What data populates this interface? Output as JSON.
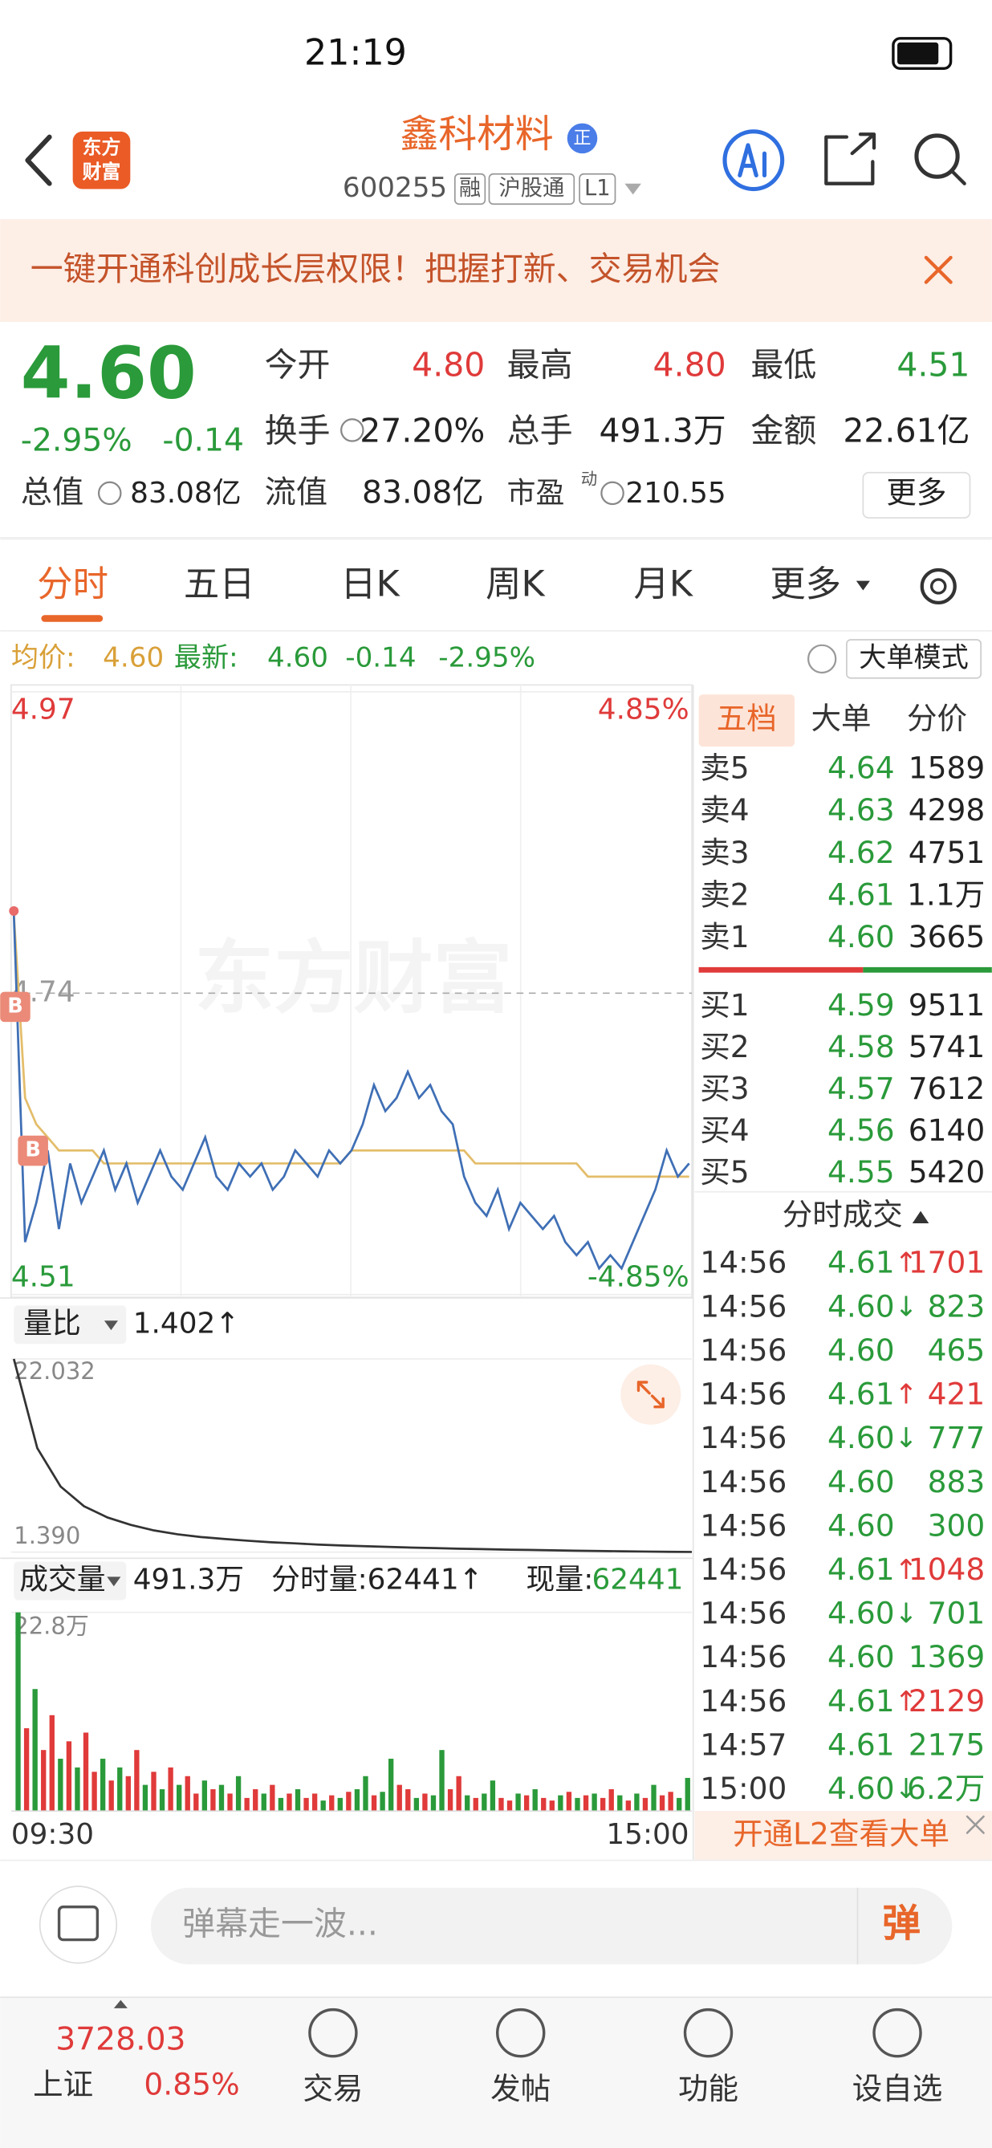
{
  "status_bar": {
    "time": "21:19"
  },
  "header": {
    "logo": [
      "东方",
      "财富"
    ],
    "title": "鑫科材料",
    "badge": "正",
    "code": "600255",
    "tags": [
      "融",
      "沪股通",
      "L1"
    ]
  },
  "banner": {
    "text": "一键开通科创成长层权限！把握打新、交易机会"
  },
  "quote": {
    "price": "4.60",
    "change_pct": "-2.95%",
    "change": "-0.14",
    "fields": [
      {
        "label": "今开",
        "value": "4.80"
      },
      {
        "label": "最高",
        "value": "4.80"
      },
      {
        "label": "最低",
        "value": "4.51"
      },
      {
        "label": "换手",
        "value": "27.20%"
      },
      {
        "label": "总手",
        "value": "491.3万"
      },
      {
        "label": "金额",
        "value": "22.61亿"
      },
      {
        "label": "总值",
        "value": "83.08亿"
      },
      {
        "label": "流值",
        "value": "83.08亿"
      },
      {
        "label": "市盈",
        "value": "210.55",
        "sup": "动"
      }
    ],
    "more": "更多"
  },
  "tabs": [
    "分时",
    "五日",
    "日K",
    "周K",
    "月K",
    "更多"
  ],
  "info": {
    "avg_label": "均价:",
    "avg": "4.60",
    "latest_label": "最新:",
    "latest": "4.60",
    "change": "-0.14",
    "change_pct": "-2.95%",
    "mode": "大单模式"
  },
  "intraday": {
    "watermark": "东方财富",
    "marker": "B",
    "ylim": [
      4.51,
      4.97
    ],
    "yticks": [
      {
        "value": 4.97,
        "label": "4.97"
      },
      {
        "value": 4.74,
        "label": "4.74"
      },
      {
        "value": 4.51,
        "label": "4.51"
      }
    ],
    "pct_ylim": [
      -4.85,
      4.85
    ],
    "pct_ticks": [
      {
        "value": 4.85,
        "label": "4.85%"
      },
      {
        "value": -4.85,
        "label": "-4.85%"
      }
    ],
    "price": [
      4.8,
      4.55,
      4.58,
      4.62,
      4.56,
      4.61,
      4.58,
      4.6,
      4.62,
      4.59,
      4.61,
      4.58,
      4.6,
      4.62,
      4.6,
      4.59,
      4.61,
      4.63,
      4.6,
      4.59,
      4.61,
      4.6,
      4.61,
      4.59,
      4.6,
      4.62,
      4.61,
      4.6,
      4.62,
      4.61,
      4.62,
      4.64,
      4.67,
      4.65,
      4.66,
      4.68,
      4.66,
      4.67,
      4.65,
      4.64,
      4.6,
      4.58,
      4.57,
      4.59,
      4.56,
      4.58,
      4.57,
      4.56,
      4.57,
      4.55,
      4.54,
      4.55,
      4.53,
      4.54,
      4.53,
      4.55,
      4.57,
      4.59,
      4.62,
      4.6,
      4.61
    ],
    "avg": [
      4.8,
      4.66,
      4.64,
      4.63,
      4.62,
      4.62,
      4.62,
      4.62,
      4.61,
      4.61,
      4.61,
      4.61,
      4.61,
      4.61,
      4.61,
      4.61,
      4.61,
      4.61,
      4.61,
      4.61,
      4.61,
      4.61,
      4.61,
      4.61,
      4.61,
      4.61,
      4.61,
      4.61,
      4.61,
      4.61,
      4.62,
      4.62,
      4.62,
      4.62,
      4.62,
      4.62,
      4.62,
      4.62,
      4.62,
      4.62,
      4.62,
      4.61,
      4.61,
      4.61,
      4.61,
      4.61,
      4.61,
      4.61,
      4.61,
      4.61,
      4.61,
      4.6,
      4.6,
      4.6,
      4.6,
      4.6,
      4.6,
      4.6,
      4.6,
      4.6,
      4.6
    ]
  },
  "volume_ratio": {
    "label": "量比",
    "value": "1.402↑",
    "ylim": [
      1.39,
      22.032
    ],
    "yticks": [
      {
        "value": 22.032,
        "label": "22.032"
      },
      {
        "value": 1.39,
        "label": "1.390"
      }
    ],
    "values": [
      22.03,
      12.5,
      8.4,
      6.3,
      5.1,
      4.3,
      3.7,
      3.3,
      3.0,
      2.8,
      2.6,
      2.45,
      2.32,
      2.2,
      2.1,
      2.02,
      1.95,
      1.88,
      1.82,
      1.76,
      1.71,
      1.66,
      1.62,
      1.58,
      1.54,
      1.51,
      1.48,
      1.45,
      1.42,
      1.4
    ]
  },
  "volume": {
    "label": "成交量",
    "total": "491.3万",
    "tick_label": "分时量:62441↑",
    "current_label": "现量:",
    "current": "62441",
    "ylim": [
      0,
      22.8
    ],
    "yticks": [
      {
        "value": 22.8,
        "label": "22.8万"
      }
    ],
    "values": [
      22.8,
      9.5,
      14,
      7,
      11,
      6,
      8,
      5,
      9,
      4.5,
      6,
      3.5,
      5,
      4,
      7,
      3,
      4.5,
      2.5,
      5,
      3,
      4,
      2,
      3.5,
      2.5,
      3,
      2,
      4,
      1.5,
      2.5,
      2,
      3,
      1.5,
      2,
      2.5,
      1.5,
      2,
      1.2,
      1.8,
      1.5,
      2.2,
      2.5,
      4,
      1.8,
      2.2,
      6,
      3,
      2.5,
      1.5,
      2,
      1.8,
      7,
      2.5,
      4,
      1.8,
      1.5,
      2,
      3.5,
      1.5,
      1.2,
      2,
      1.8,
      2.5,
      1.5,
      1.2,
      1.8,
      2.2,
      1.5,
      1.8,
      2,
      1.5,
      2.5,
      1.8,
      1.2,
      2,
      1.5,
      3,
      1.8,
      2.2,
      1.5,
      3.8
    ],
    "up": [
      0,
      1,
      0,
      1,
      1,
      0,
      1,
      0,
      1,
      1,
      0,
      1,
      0,
      1,
      1,
      0,
      1,
      0,
      1,
      0,
      1,
      1,
      0,
      1,
      0,
      1,
      0,
      1,
      1,
      0,
      1,
      0,
      1,
      0,
      1,
      1,
      0,
      1,
      0,
      1,
      0,
      0,
      1,
      0,
      0,
      1,
      1,
      0,
      1,
      0,
      0,
      1,
      1,
      0,
      1,
      0,
      0,
      1,
      1,
      0,
      1,
      0,
      1,
      1,
      0,
      1,
      0,
      1,
      0,
      1,
      1,
      0,
      1,
      0,
      1,
      0,
      1,
      1,
      0,
      0
    ]
  },
  "xaxis": {
    "start": "09:30",
    "end": "15:00"
  },
  "orderbook": {
    "tabs": [
      "五档",
      "大单",
      "分价"
    ],
    "asks": [
      [
        "卖5",
        "4.64",
        "1589"
      ],
      [
        "卖4",
        "4.63",
        "4298"
      ],
      [
        "卖3",
        "4.62",
        "4751"
      ],
      [
        "卖2",
        "4.61",
        "1.1万"
      ],
      [
        "卖1",
        "4.60",
        "3665"
      ]
    ],
    "bids": [
      [
        "买1",
        "4.59",
        "9511"
      ],
      [
        "买2",
        "4.58",
        "5741"
      ],
      [
        "买3",
        "4.57",
        "7612"
      ],
      [
        "买4",
        "4.56",
        "6140"
      ],
      [
        "买5",
        "4.55",
        "5420"
      ]
    ]
  },
  "trades": {
    "title": "分时成交",
    "rows": [
      {
        "time": "14:56",
        "price": "4.61",
        "arrow": "↑",
        "volume": "1701",
        "side": "up"
      },
      {
        "time": "14:56",
        "price": "4.60",
        "arrow": "↓",
        "volume": "823",
        "side": "down"
      },
      {
        "time": "14:56",
        "price": "4.60",
        "volume": "465",
        "side": "down"
      },
      {
        "time": "14:56",
        "price": "4.61",
        "arrow": "↑",
        "volume": "421",
        "side": "up"
      },
      {
        "time": "14:56",
        "price": "4.60",
        "arrow": "↓",
        "volume": "777",
        "side": "down"
      },
      {
        "time": "14:56",
        "price": "4.60",
        "volume": "883",
        "side": "down"
      },
      {
        "time": "14:56",
        "price": "4.60",
        "volume": "300",
        "side": "down"
      },
      {
        "time": "14:56",
        "price": "4.61",
        "arrow": "↑",
        "volume": "1048",
        "side": "up"
      },
      {
        "time": "14:56",
        "price": "4.60",
        "arrow": "↓",
        "volume": "701",
        "side": "down"
      },
      {
        "time": "14:56",
        "price": "4.60",
        "volume": "1369",
        "side": "down"
      },
      {
        "time": "14:56",
        "price": "4.61",
        "arrow": "↑",
        "volume": "2129",
        "side": "up"
      },
      {
        "time": "14:57",
        "price": "4.61",
        "volume": "2175",
        "side": "down"
      },
      {
        "time": "15:00",
        "price": "4.60",
        "arrow": "↓",
        "volume": "6.2万",
        "side": "down"
      }
    ]
  },
  "l2": "开通L2查看大单",
  "comment": {
    "placeholder": "弹幕走一波...",
    "button": "弹"
  },
  "nav": {
    "index": {
      "value": "3728.03",
      "name": "上证",
      "pct": "0.85%"
    },
    "items": [
      "交易",
      "发帖",
      "功能",
      "设自选"
    ]
  }
}
